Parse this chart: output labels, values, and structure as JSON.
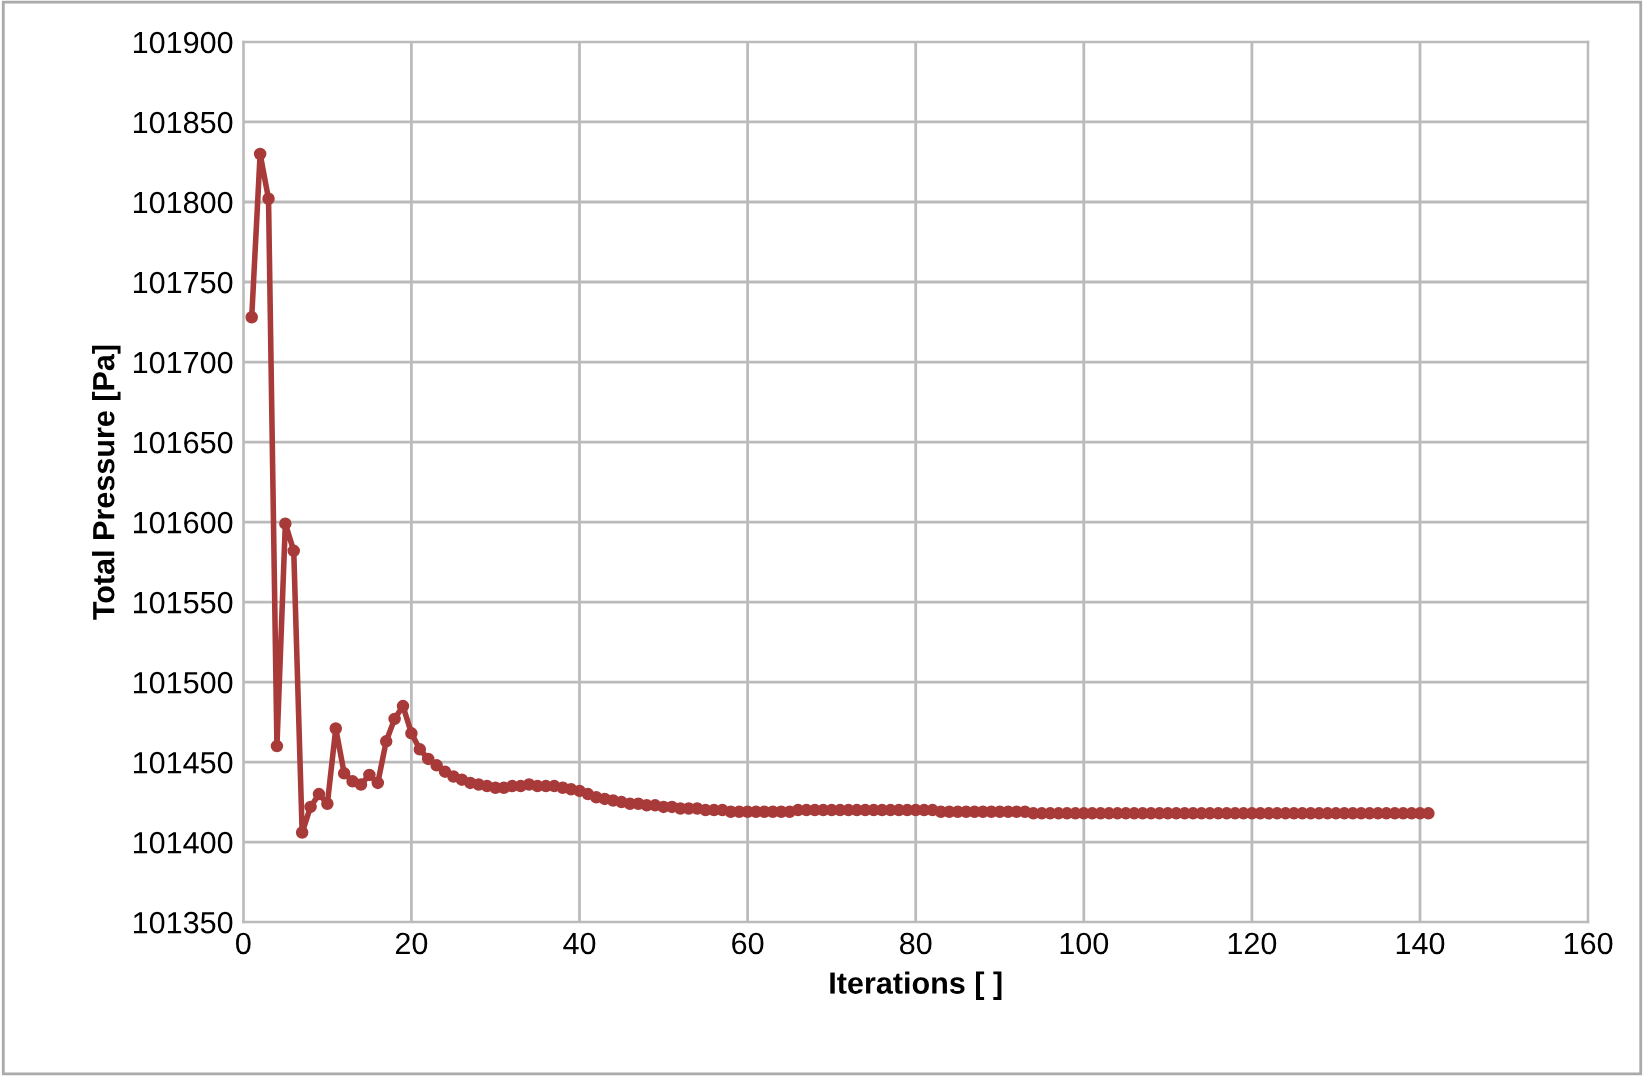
{
  "chart_data": {
    "type": "line",
    "xlabel": "Iterations [ ]",
    "ylabel": "Total Pressure [Pa]",
    "x": [
      1,
      2,
      3,
      4,
      5,
      6,
      7,
      8,
      9,
      10,
      11,
      12,
      13,
      14,
      15,
      16,
      17,
      18,
      19,
      20,
      21,
      22,
      23,
      24,
      25,
      26,
      27,
      28,
      29,
      30,
      31,
      32,
      33,
      34,
      35,
      36,
      37,
      38,
      39,
      40,
      41,
      42,
      43,
      44,
      45,
      46,
      47,
      48,
      49,
      50,
      51,
      52,
      53,
      54,
      55,
      56,
      57,
      58,
      59,
      60,
      61,
      62,
      63,
      64,
      65,
      66,
      67,
      68,
      69,
      70,
      71,
      72,
      73,
      74,
      75,
      76,
      77,
      78,
      79,
      80,
      81,
      82,
      83,
      84,
      85,
      86,
      87,
      88,
      89,
      90,
      91,
      92,
      93,
      94,
      95,
      96,
      97,
      98,
      99,
      100,
      101,
      102,
      103,
      104,
      105,
      106,
      107,
      108,
      109,
      110,
      111,
      112,
      113,
      114,
      115,
      116,
      117,
      118,
      119,
      120,
      121,
      122,
      123,
      124,
      125,
      126,
      127,
      128,
      129,
      130,
      131,
      132,
      133,
      134,
      135,
      136,
      137,
      138,
      139,
      140,
      141
    ],
    "series": [
      {
        "color": "#a83a3a",
        "values": [
          101728,
          101830,
          101802,
          101460,
          101599,
          101582,
          101406,
          101422,
          101430,
          101424,
          101471,
          101443,
          101438,
          101436,
          101442,
          101437,
          101463,
          101477,
          101485,
          101468,
          101458,
          101452,
          101448,
          101444,
          101441,
          101439,
          101437,
          101436,
          101435,
          101434,
          101434,
          101435,
          101435,
          101436,
          101435,
          101435,
          101435,
          101434,
          101433,
          101432,
          101430,
          101428,
          101427,
          101426,
          101425,
          101424,
          101424,
          101423,
          101423,
          101422,
          101422,
          101421,
          101421,
          101421,
          101420,
          101420,
          101420,
          101419,
          101419,
          101419,
          101419,
          101419,
          101419,
          101419,
          101419,
          101420,
          101420,
          101420,
          101420,
          101420,
          101420,
          101420,
          101420,
          101420,
          101420,
          101420,
          101420,
          101420,
          101420,
          101420,
          101420,
          101420,
          101419,
          101419,
          101419,
          101419,
          101419,
          101419,
          101419,
          101419,
          101419,
          101419,
          101419,
          101418,
          101418,
          101418,
          101418,
          101418,
          101418,
          101418,
          101418,
          101418,
          101418,
          101418,
          101418,
          101418,
          101418,
          101418,
          101418,
          101418,
          101418,
          101418,
          101418,
          101418,
          101418,
          101418,
          101418,
          101418,
          101418,
          101418,
          101418,
          101418,
          101418,
          101418,
          101418,
          101418,
          101418,
          101418,
          101418,
          101418,
          101418,
          101418,
          101418,
          101418,
          101418,
          101418,
          101418,
          101418,
          101418,
          101418,
          101418
        ]
      }
    ],
    "xlim": [
      0,
      160
    ],
    "xticks": [
      0,
      20,
      40,
      60,
      80,
      100,
      120,
      140,
      160
    ],
    "ylim": [
      101350,
      101900
    ],
    "yticks": [
      101350,
      101400,
      101450,
      101500,
      101550,
      101600,
      101650,
      101700,
      101750,
      101800,
      101850,
      101900
    ],
    "grid": true,
    "marker": "circle",
    "line_style": "solid"
  }
}
